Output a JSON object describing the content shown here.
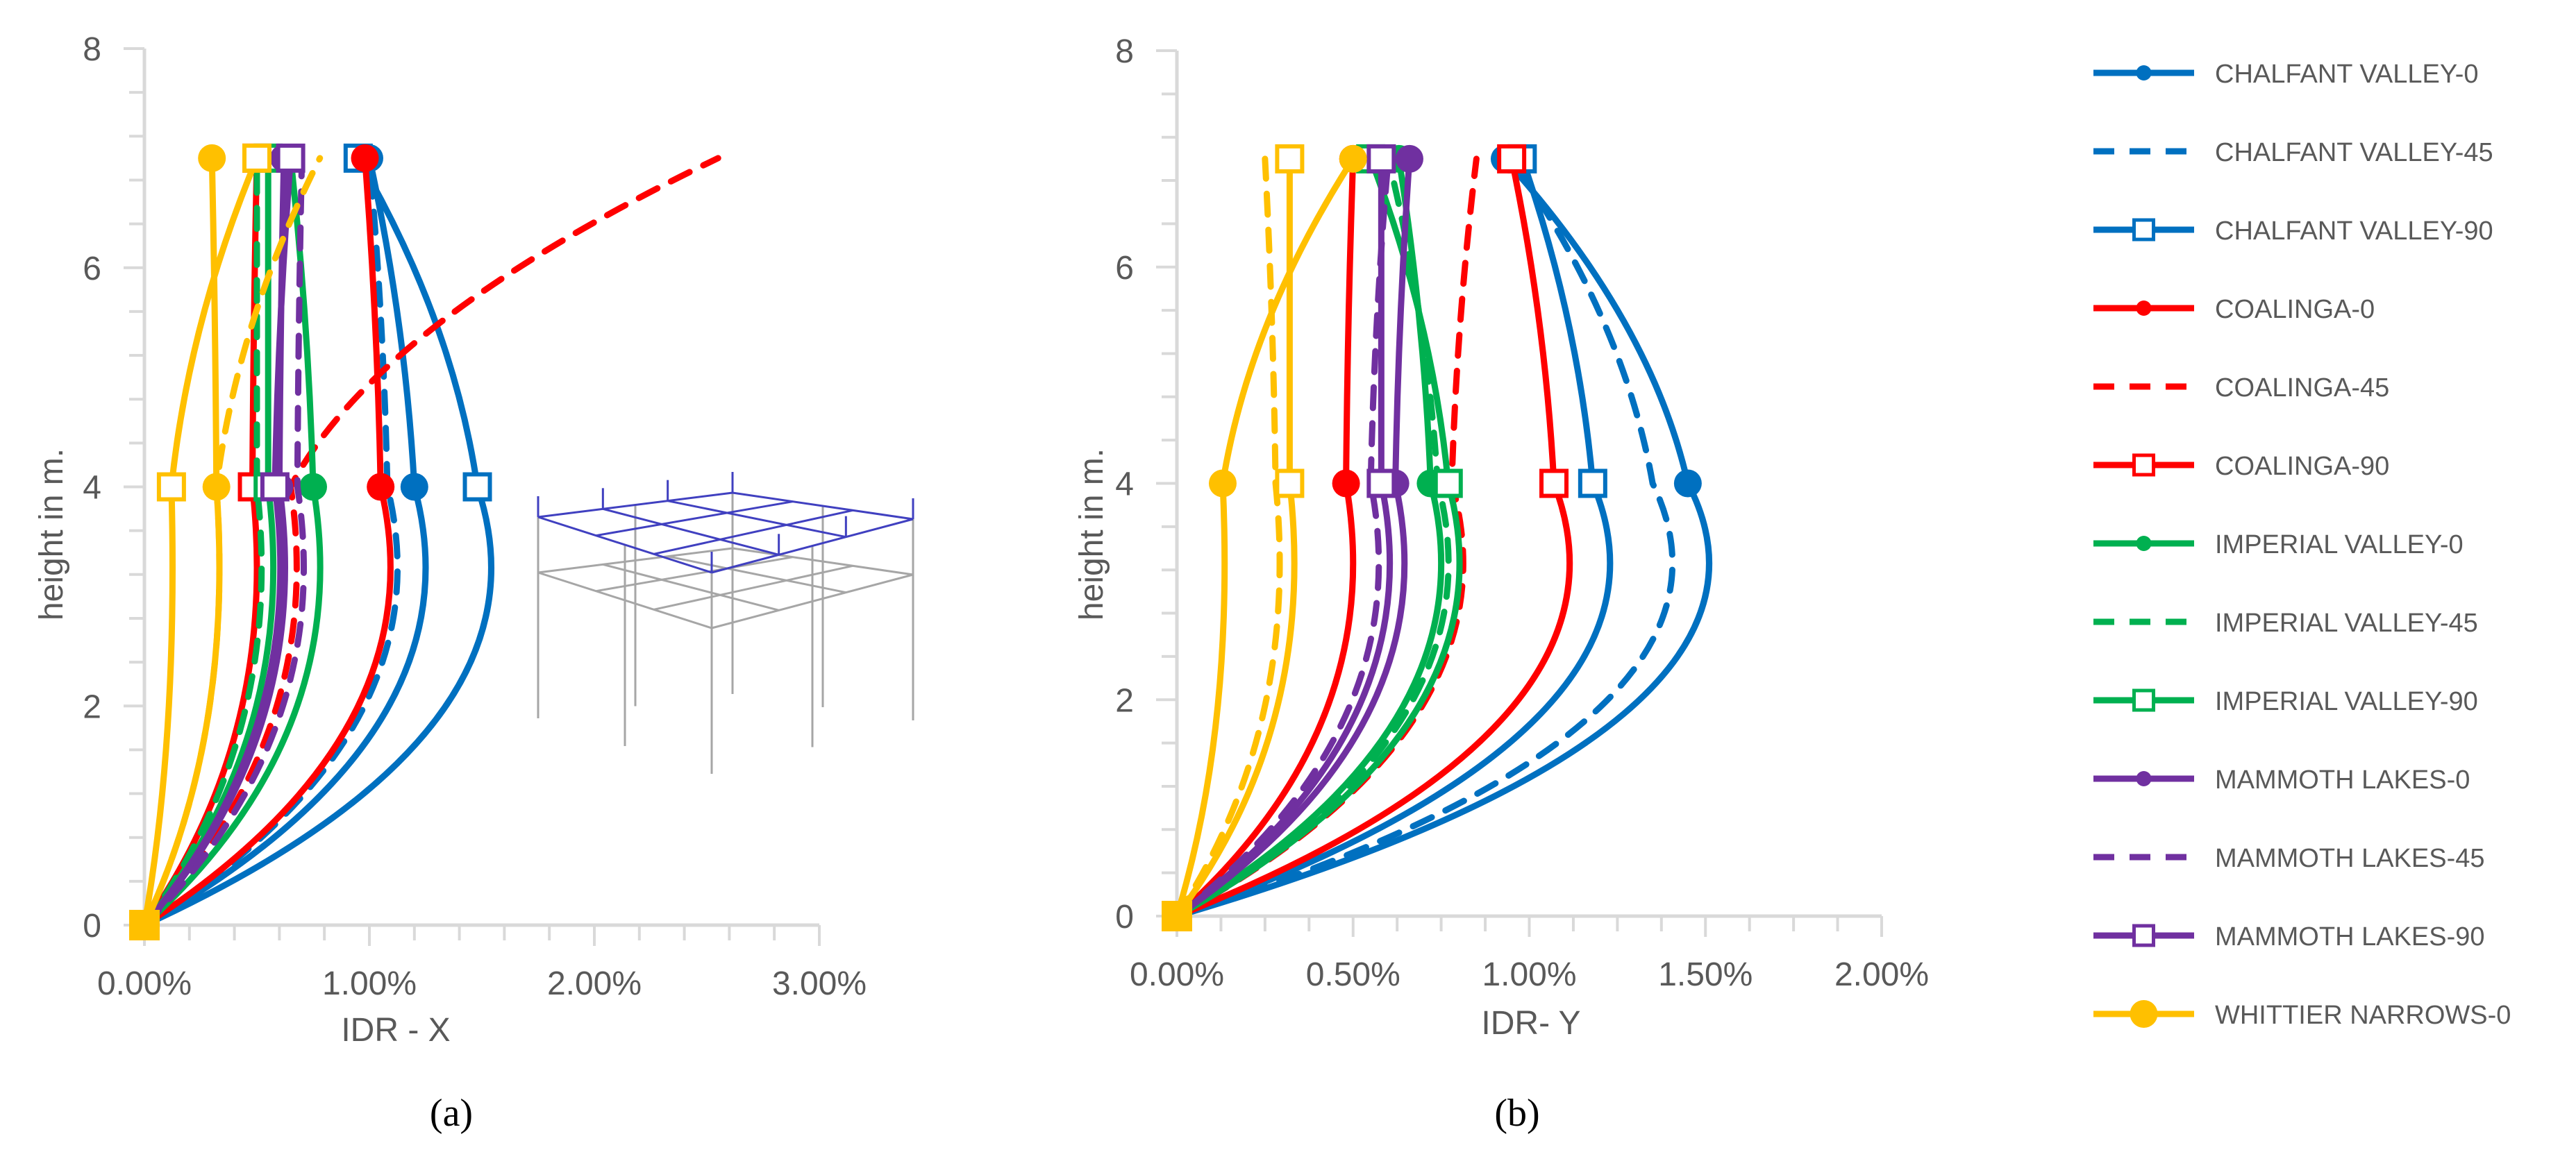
{
  "colors": {
    "CHALFANT VALLEY": "#0070C0",
    "COALINGA": "#FF0000",
    "IMPERIAL VALLEY": "#00B050",
    "MAMMOTH LAKES": "#7030A0",
    "WHITTIER NARROWS": "#FFC000",
    "axis": "#D9D9D9",
    "text": "#595959",
    "frame3d_top": "#4040C0",
    "frame3d_columns": "#A6A6A6"
  },
  "legend": [
    {
      "label": "CHALFANT VALLEY-0",
      "color": "#0070C0",
      "dash": false,
      "marker": "dot"
    },
    {
      "label": "CHALFANT VALLEY-45",
      "color": "#0070C0",
      "dash": true,
      "marker": "none"
    },
    {
      "label": "CHALFANT VALLEY-90",
      "color": "#0070C0",
      "dash": false,
      "marker": "square"
    },
    {
      "label": "COALINGA-0",
      "color": "#FF0000",
      "dash": false,
      "marker": "dot"
    },
    {
      "label": "COALINGA-45",
      "color": "#FF0000",
      "dash": true,
      "marker": "none"
    },
    {
      "label": "COALINGA-90",
      "color": "#FF0000",
      "dash": false,
      "marker": "square"
    },
    {
      "label": "IMPERIAL VALLEY-0",
      "color": "#00B050",
      "dash": false,
      "marker": "dot"
    },
    {
      "label": "IMPERIAL VALLEY-45",
      "color": "#00B050",
      "dash": true,
      "marker": "none"
    },
    {
      "label": "IMPERIAL VALLEY-90",
      "color": "#00B050",
      "dash": false,
      "marker": "square"
    },
    {
      "label": "MAMMOTH LAKES-0",
      "color": "#7030A0",
      "dash": false,
      "marker": "dot"
    },
    {
      "label": "MAMMOTH LAKES-45",
      "color": "#7030A0",
      "dash": true,
      "marker": "none"
    },
    {
      "label": "MAMMOTH LAKES-90",
      "color": "#7030A0",
      "dash": false,
      "marker": "square"
    },
    {
      "label": "WHITTIER NARROWS-0",
      "color": "#FFC000",
      "dash": false,
      "marker": "dot"
    }
  ],
  "chart_data": [
    {
      "type": "line",
      "panel_label": "(a)",
      "xlabel": "IDR - X",
      "ylabel": "height in m.",
      "xlim": [
        0,
        3.0
      ],
      "ylim": [
        0,
        8
      ],
      "x_unit": "%",
      "x_ticks": [
        "0.00%",
        "1.00%",
        "2.00%",
        "3.00%"
      ],
      "y_ticks": [
        "0",
        "2",
        "4",
        "6",
        "8"
      ],
      "grid": false,
      "legend_position": "right",
      "series": [
        {
          "name": "CHALFANT VALLEY-0",
          "color": "#0070C0",
          "dash": false,
          "marker": "dot",
          "x": [
            0,
            1.2,
            1.0
          ],
          "y": [
            0,
            4,
            7
          ]
        },
        {
          "name": "CHALFANT VALLEY-45",
          "color": "#0070C0",
          "dash": true,
          "marker": "none",
          "x": [
            0,
            1.08,
            1.0
          ],
          "y": [
            0,
            4,
            7
          ]
        },
        {
          "name": "CHALFANT VALLEY-90",
          "color": "#0070C0",
          "dash": false,
          "marker": "square",
          "x": [
            0,
            1.48,
            0.95
          ],
          "y": [
            0,
            4,
            7
          ]
        },
        {
          "name": "COALINGA-0",
          "color": "#FF0000",
          "dash": false,
          "marker": "dot",
          "x": [
            0,
            1.05,
            0.98
          ],
          "y": [
            0,
            4,
            7
          ]
        },
        {
          "name": "COALINGA-45",
          "color": "#FF0000",
          "dash": true,
          "marker": "none",
          "x": [
            0,
            0.65,
            2.55
          ],
          "y": [
            0,
            4,
            7
          ]
        },
        {
          "name": "COALINGA-90",
          "color": "#FF0000",
          "dash": false,
          "marker": "square",
          "x": [
            0,
            0.48,
            0.5
          ],
          "y": [
            0,
            4,
            7
          ]
        },
        {
          "name": "IMPERIAL VALLEY-0",
          "color": "#00B050",
          "dash": false,
          "marker": "dot",
          "x": [
            0,
            0.75,
            0.65
          ],
          "y": [
            0,
            4,
            7
          ]
        },
        {
          "name": "IMPERIAL VALLEY-45",
          "color": "#00B050",
          "dash": true,
          "marker": "none",
          "x": [
            0,
            0.5,
            0.5
          ],
          "y": [
            0,
            4,
            7
          ]
        },
        {
          "name": "IMPERIAL VALLEY-90",
          "color": "#00B050",
          "dash": false,
          "marker": "square",
          "x": [
            0,
            0.55,
            0.55
          ],
          "y": [
            0,
            4,
            7
          ]
        },
        {
          "name": "MAMMOTH LAKES-0",
          "color": "#7030A0",
          "dash": false,
          "marker": "dot",
          "x": [
            0,
            0.6,
            0.62
          ],
          "y": [
            0,
            4,
            7
          ]
        },
        {
          "name": "MAMMOTH LAKES-45",
          "color": "#7030A0",
          "dash": true,
          "marker": "none",
          "x": [
            0,
            0.68,
            0.7
          ],
          "y": [
            0,
            4,
            7
          ]
        },
        {
          "name": "MAMMOTH LAKES-90",
          "color": "#7030A0",
          "dash": false,
          "marker": "square",
          "x": [
            0,
            0.58,
            0.65
          ],
          "y": [
            0,
            4,
            7
          ]
        },
        {
          "name": "WHITTIER NARROWS-0",
          "color": "#FFC000",
          "dash": false,
          "marker": "dot",
          "x": [
            0,
            0.32,
            0.3
          ],
          "y": [
            0,
            4,
            7
          ]
        },
        {
          "name": "",
          "color": "#FFC000",
          "dash": true,
          "marker": "none",
          "x": [
            0,
            0.32,
            0.78
          ],
          "y": [
            0,
            4,
            7
          ]
        },
        {
          "name": "",
          "color": "#FFC000",
          "dash": false,
          "marker": "square",
          "x": [
            0,
            0.12,
            0.5
          ],
          "y": [
            0,
            4,
            7
          ]
        }
      ]
    },
    {
      "type": "line",
      "panel_label": "(b)",
      "xlabel": "IDR- Y",
      "ylabel": "height  in m.",
      "xlim": [
        0,
        2.0
      ],
      "ylim": [
        0,
        8
      ],
      "x_unit": "%",
      "x_ticks": [
        "0.00%",
        "0.50%",
        "1.00%",
        "1.50%",
        "2.00%"
      ],
      "y_ticks": [
        "0",
        "2",
        "4",
        "6",
        "8"
      ],
      "grid": false,
      "series": [
        {
          "name": "CHALFANT VALLEY-0",
          "color": "#0070C0",
          "dash": false,
          "marker": "dot",
          "x": [
            0,
            1.45,
            0.93
          ],
          "y": [
            0,
            4,
            7
          ]
        },
        {
          "name": "CHALFANT VALLEY-45",
          "color": "#0070C0",
          "dash": true,
          "marker": "none",
          "x": [
            0,
            1.35,
            0.95
          ],
          "y": [
            0,
            4,
            7
          ]
        },
        {
          "name": "CHALFANT VALLEY-90",
          "color": "#0070C0",
          "dash": false,
          "marker": "square",
          "x": [
            0,
            1.18,
            0.98
          ],
          "y": [
            0,
            4,
            7
          ]
        },
        {
          "name": "COALINGA-0",
          "color": "#FF0000",
          "dash": false,
          "marker": "dot",
          "x": [
            0,
            0.48,
            0.5
          ],
          "y": [
            0,
            4,
            7
          ]
        },
        {
          "name": "COALINGA-45",
          "color": "#FF0000",
          "dash": true,
          "marker": "none",
          "x": [
            0,
            0.78,
            0.85
          ],
          "y": [
            0,
            4,
            7
          ]
        },
        {
          "name": "COALINGA-90",
          "color": "#FF0000",
          "dash": false,
          "marker": "square",
          "x": [
            0,
            1.07,
            0.95
          ],
          "y": [
            0,
            4,
            7
          ]
        },
        {
          "name": "IMPERIAL VALLEY-0",
          "color": "#00B050",
          "dash": false,
          "marker": "dot",
          "x": [
            0,
            0.72,
            0.63
          ],
          "y": [
            0,
            4,
            7
          ]
        },
        {
          "name": "IMPERIAL VALLEY-45",
          "color": "#00B050",
          "dash": true,
          "marker": "none",
          "x": [
            0,
            0.74,
            0.6
          ],
          "y": [
            0,
            4,
            7
          ]
        },
        {
          "name": "IMPERIAL VALLEY-90",
          "color": "#00B050",
          "dash": false,
          "marker": "square",
          "x": [
            0,
            0.77,
            0.55
          ],
          "y": [
            0,
            4,
            7
          ]
        },
        {
          "name": "MAMMOTH LAKES-0",
          "color": "#7030A0",
          "dash": false,
          "marker": "dot",
          "x": [
            0,
            0.62,
            0.66
          ],
          "y": [
            0,
            4,
            7
          ]
        },
        {
          "name": "MAMMOTH LAKES-45",
          "color": "#7030A0",
          "dash": true,
          "marker": "none",
          "x": [
            0,
            0.55,
            0.6
          ],
          "y": [
            0,
            4,
            7
          ]
        },
        {
          "name": "MAMMOTH LAKES-90",
          "color": "#7030A0",
          "dash": false,
          "marker": "square",
          "x": [
            0,
            0.58,
            0.58
          ],
          "y": [
            0,
            4,
            7
          ]
        },
        {
          "name": "WHITTIER NARROWS-0",
          "color": "#FFC000",
          "dash": false,
          "marker": "dot",
          "x": [
            0,
            0.13,
            0.5
          ],
          "y": [
            0,
            4,
            7
          ]
        },
        {
          "name": "",
          "color": "#FFC000",
          "dash": true,
          "marker": "none",
          "x": [
            0,
            0.28,
            0.25
          ],
          "y": [
            0,
            4,
            7
          ]
        },
        {
          "name": "",
          "color": "#FFC000",
          "dash": false,
          "marker": "square",
          "x": [
            0,
            0.32,
            0.32
          ],
          "y": [
            0,
            4,
            7
          ]
        }
      ]
    }
  ]
}
